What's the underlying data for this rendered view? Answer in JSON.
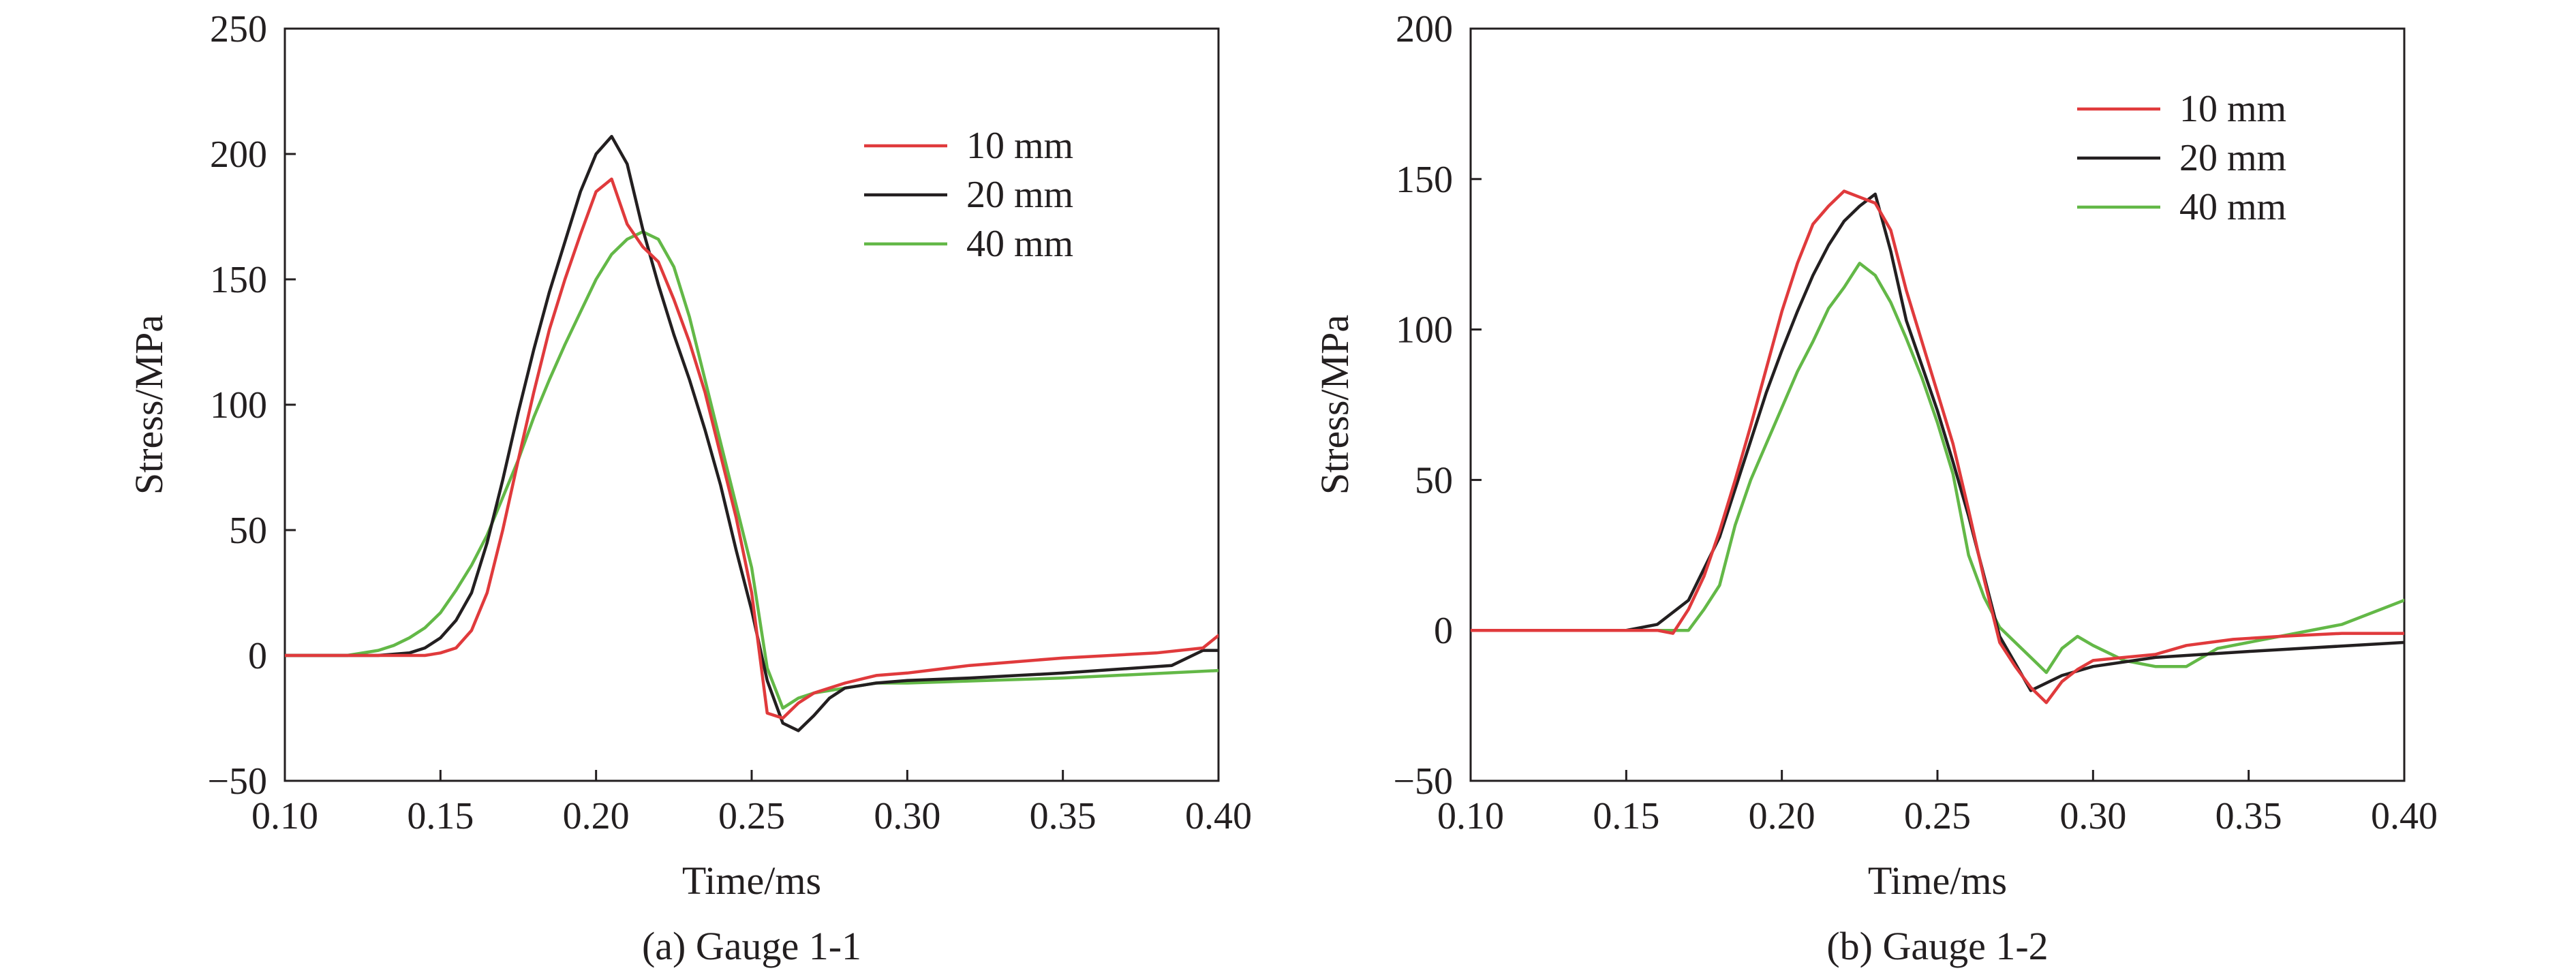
{
  "chart_data": [
    {
      "type": "line",
      "caption": "(a) Gauge 1-1",
      "xlabel": "Time/ms",
      "ylabel": "Stress/MPa",
      "xlim": [
        0.1,
        0.4
      ],
      "ylim": [
        -50,
        250
      ],
      "xticks": [
        0.1,
        0.15,
        0.2,
        0.25,
        0.3,
        0.35,
        0.4
      ],
      "xtick_labels": [
        "0.10",
        "0.15",
        "0.20",
        "0.25",
        "0.30",
        "0.35",
        "0.40"
      ],
      "yticks": [
        -50,
        0,
        50,
        100,
        150,
        200,
        250
      ],
      "ytick_labels": [
        "−50",
        "0",
        "50",
        "100",
        "150",
        "200",
        "250"
      ],
      "legend_position": "top-right",
      "series": [
        {
          "name": "10 mm",
          "color": "#e03a3c",
          "x": [
            0.1,
            0.13,
            0.145,
            0.15,
            0.155,
            0.16,
            0.165,
            0.17,
            0.175,
            0.18,
            0.185,
            0.19,
            0.195,
            0.2,
            0.205,
            0.21,
            0.215,
            0.22,
            0.225,
            0.23,
            0.235,
            0.24,
            0.245,
            0.25,
            0.255,
            0.26,
            0.265,
            0.27,
            0.28,
            0.29,
            0.3,
            0.32,
            0.35,
            0.38,
            0.395,
            0.4
          ],
          "y": [
            0,
            0,
            0,
            1,
            3,
            10,
            25,
            50,
            78,
            105,
            130,
            150,
            168,
            185,
            190,
            172,
            163,
            157,
            142,
            125,
            105,
            80,
            55,
            25,
            -23,
            -25,
            -19,
            -15,
            -11,
            -8,
            -7,
            -4,
            -1,
            1,
            3,
            8
          ]
        },
        {
          "name": "20 mm",
          "color": "#231f20",
          "x": [
            0.1,
            0.13,
            0.14,
            0.145,
            0.15,
            0.155,
            0.16,
            0.165,
            0.17,
            0.175,
            0.18,
            0.185,
            0.19,
            0.195,
            0.2,
            0.205,
            0.21,
            0.215,
            0.22,
            0.225,
            0.23,
            0.235,
            0.24,
            0.245,
            0.25,
            0.255,
            0.26,
            0.265,
            0.27,
            0.275,
            0.28,
            0.29,
            0.3,
            0.32,
            0.35,
            0.385,
            0.395,
            0.4
          ],
          "y": [
            0,
            0,
            1,
            3,
            7,
            14,
            25,
            45,
            70,
            97,
            122,
            145,
            165,
            185,
            200,
            207,
            196,
            170,
            148,
            128,
            110,
            90,
            68,
            42,
            18,
            -10,
            -27,
            -30,
            -24,
            -17,
            -13,
            -11,
            -10,
            -9,
            -7,
            -4,
            2,
            2
          ]
        },
        {
          "name": "40 mm",
          "color": "#63b847",
          "x": [
            0.1,
            0.12,
            0.13,
            0.135,
            0.14,
            0.145,
            0.15,
            0.155,
            0.16,
            0.165,
            0.17,
            0.175,
            0.18,
            0.185,
            0.19,
            0.195,
            0.2,
            0.205,
            0.21,
            0.215,
            0.22,
            0.225,
            0.23,
            0.235,
            0.24,
            0.245,
            0.25,
            0.255,
            0.26,
            0.265,
            0.27,
            0.28,
            0.29,
            0.3,
            0.35,
            0.4
          ],
          "y": [
            0,
            0,
            2,
            4,
            7,
            11,
            17,
            26,
            36,
            48,
            63,
            78,
            95,
            110,
            124,
            137,
            150,
            160,
            166,
            169,
            166,
            155,
            135,
            110,
            85,
            60,
            35,
            -5,
            -21,
            -17,
            -15,
            -13,
            -11,
            -11,
            -9,
            -6
          ]
        }
      ]
    },
    {
      "type": "line",
      "caption": "(b) Gauge 1-2",
      "xlabel": "Time/ms",
      "ylabel": "Stress/MPa",
      "xlim": [
        0.1,
        0.4
      ],
      "ylim": [
        -50,
        200
      ],
      "xticks": [
        0.1,
        0.15,
        0.2,
        0.25,
        0.3,
        0.35,
        0.4
      ],
      "xtick_labels": [
        "0.10",
        "0.15",
        "0.20",
        "0.25",
        "0.30",
        "0.35",
        "0.40"
      ],
      "yticks": [
        -50,
        0,
        50,
        100,
        150,
        200
      ],
      "ytick_labels": [
        "−50",
        "0",
        "50",
        "100",
        "150",
        "200"
      ],
      "legend_position": "top-right",
      "series": [
        {
          "name": "10 mm",
          "color": "#e03a3c",
          "x": [
            0.1,
            0.16,
            0.165,
            0.17,
            0.175,
            0.18,
            0.185,
            0.19,
            0.195,
            0.2,
            0.205,
            0.21,
            0.215,
            0.22,
            0.225,
            0.23,
            0.235,
            0.24,
            0.245,
            0.25,
            0.255,
            0.26,
            0.265,
            0.27,
            0.275,
            0.28,
            0.285,
            0.29,
            0.295,
            0.3,
            0.31,
            0.32,
            0.33,
            0.345,
            0.36,
            0.38,
            0.39,
            0.4
          ],
          "y": [
            0,
            0,
            -1,
            7,
            18,
            33,
            50,
            68,
            87,
            106,
            122,
            135,
            141,
            146,
            144,
            142,
            133,
            113,
            96,
            79,
            62,
            40,
            17,
            -4,
            -12,
            -19,
            -24,
            -17,
            -13,
            -10,
            -9,
            -8,
            -5,
            -3,
            -2,
            -1,
            -1,
            -1
          ]
        },
        {
          "name": "20 mm",
          "color": "#231f20",
          "x": [
            0.1,
            0.15,
            0.16,
            0.17,
            0.18,
            0.185,
            0.19,
            0.195,
            0.2,
            0.205,
            0.21,
            0.215,
            0.22,
            0.225,
            0.23,
            0.235,
            0.24,
            0.245,
            0.25,
            0.255,
            0.26,
            0.265,
            0.27,
            0.275,
            0.28,
            0.29,
            0.3,
            0.32,
            0.35,
            0.4
          ],
          "y": [
            0,
            0,
            2,
            10,
            31,
            47,
            63,
            79,
            93,
            106,
            118,
            128,
            136,
            141,
            145,
            126,
            103,
            88,
            73,
            56,
            38,
            18,
            -2,
            -11,
            -20,
            -15,
            -12,
            -9,
            -7,
            -4
          ]
        },
        {
          "name": "40 mm",
          "color": "#63b847",
          "x": [
            0.1,
            0.17,
            0.175,
            0.18,
            0.185,
            0.19,
            0.195,
            0.2,
            0.205,
            0.21,
            0.215,
            0.22,
            0.225,
            0.23,
            0.235,
            0.24,
            0.245,
            0.25,
            0.255,
            0.26,
            0.265,
            0.27,
            0.275,
            0.28,
            0.285,
            0.29,
            0.295,
            0.3,
            0.31,
            0.32,
            0.33,
            0.34,
            0.36,
            0.38,
            0.4
          ],
          "y": [
            0,
            0,
            7,
            15,
            35,
            50,
            62,
            74,
            86,
            96,
            107,
            114,
            122,
            118,
            109,
            97,
            84,
            69,
            52,
            25,
            11,
            1,
            -4,
            -9,
            -14,
            -6,
            -2,
            -5,
            -10,
            -12,
            -12,
            -6,
            -2,
            2,
            10
          ]
        }
      ]
    }
  ]
}
